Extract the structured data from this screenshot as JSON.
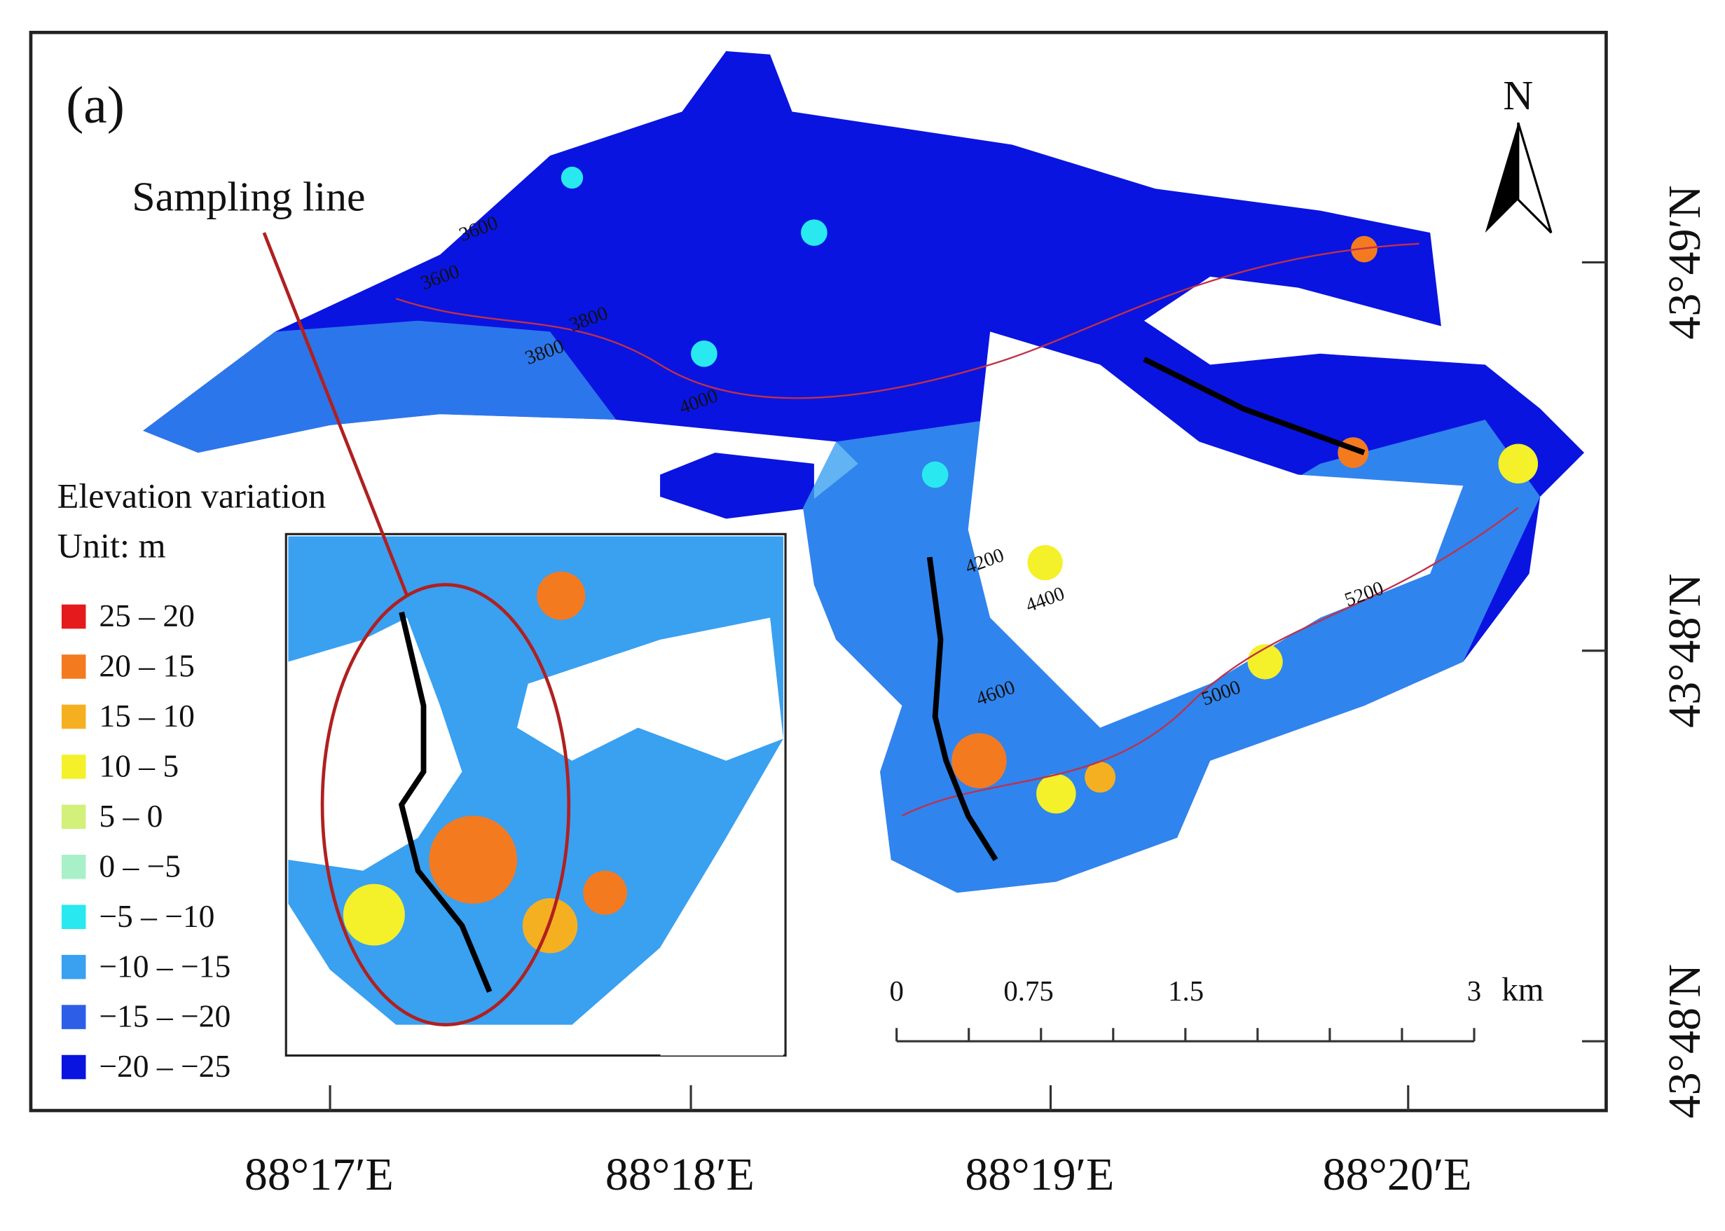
{
  "panel_label": "(a)",
  "annotation": "Sampling line",
  "north_arrow": "N",
  "legend": {
    "title": "Elevation variation",
    "unit": "Unit: m",
    "items": [
      {
        "label": "25 – 20",
        "color": "#e41a1c"
      },
      {
        "label": "20 – 15",
        "color": "#f47a20"
      },
      {
        "label": "15 – 10",
        "color": "#f5b022"
      },
      {
        "label": "10 – 5",
        "color": "#f4f02a"
      },
      {
        "label": " 5 – 0",
        "color": "#d2f07a"
      },
      {
        "label": " 0 – −5",
        "color": "#a8f0c8"
      },
      {
        "label": "−5 – −10",
        "color": "#2ae8f0"
      },
      {
        "label": "−10 – −15",
        "color": "#3aa0f0"
      },
      {
        "label": "−15 – −20",
        "color": "#2c5ee8"
      },
      {
        "label": "−20 – −25",
        "color": "#0a14e0"
      }
    ]
  },
  "scale_bar": {
    "labels": [
      "0",
      "0.75",
      "1.5",
      "3"
    ],
    "unit": "km"
  },
  "longitude_labels": [
    "88°17′E",
    "88°18′E",
    "88°19′E",
    "88°20′E"
  ],
  "latitude_labels": [
    "43°49′N",
    "43°48′N",
    "43°48′N"
  ],
  "contour_labels": [
    "3600",
    "3600",
    "3800",
    "3800",
    "4000",
    "4200",
    "4400",
    "4600",
    "5000",
    "5200"
  ]
}
